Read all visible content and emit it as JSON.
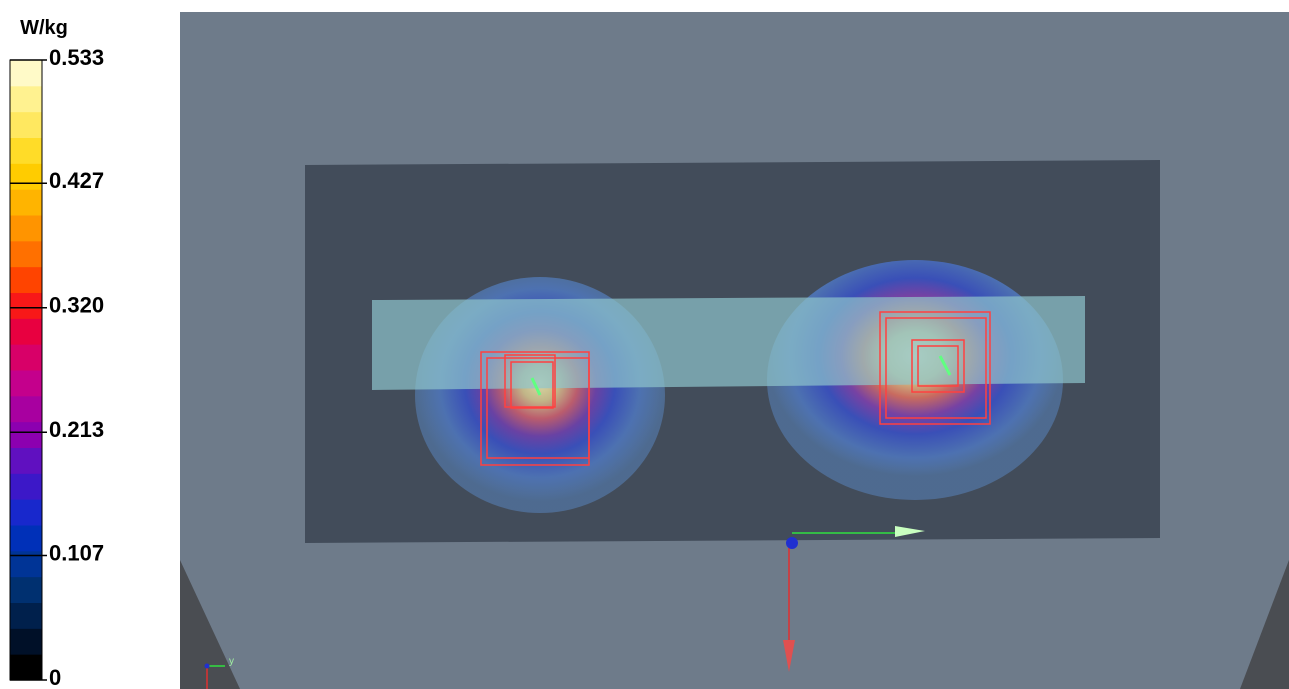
{
  "colorbar": {
    "unit": "W/kg",
    "range": [
      0,
      0.533
    ],
    "ticks": [
      0.533,
      0.427,
      {
        "value": 0.32,
        "label": "0.320"
      },
      0.213,
      0.107,
      0
    ]
  },
  "viewport": {
    "triad_label": "y"
  }
}
